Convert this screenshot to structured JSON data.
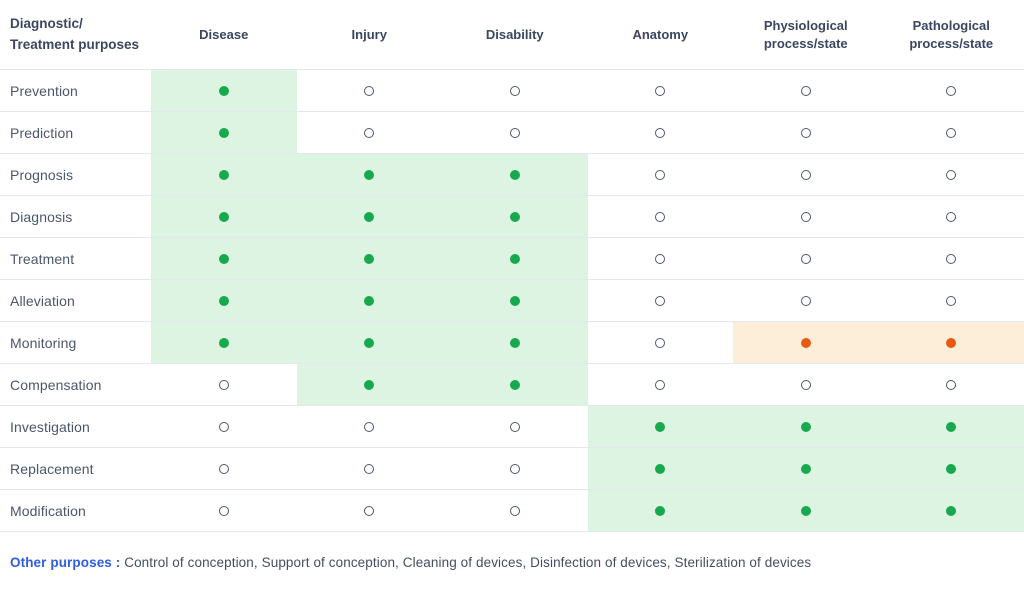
{
  "chart_data": {
    "type": "table",
    "corner_header": [
      "Diagnostic/",
      "Treatment purposes"
    ],
    "columns": [
      "Disease",
      "Injury",
      "Disability",
      "Anatomy",
      "Physiological process/state",
      "Pathological process/state"
    ],
    "rows": [
      {
        "label": "Prevention",
        "cells": [
          "filled_green",
          "empty",
          "empty",
          "empty",
          "empty",
          "empty"
        ]
      },
      {
        "label": "Prediction",
        "cells": [
          "filled_green",
          "empty",
          "empty",
          "empty",
          "empty",
          "empty"
        ]
      },
      {
        "label": "Prognosis",
        "cells": [
          "filled_green",
          "filled_green",
          "filled_green",
          "empty",
          "empty",
          "empty"
        ]
      },
      {
        "label": "Diagnosis",
        "cells": [
          "filled_green",
          "filled_green",
          "filled_green",
          "empty",
          "empty",
          "empty"
        ]
      },
      {
        "label": "Treatment",
        "cells": [
          "filled_green",
          "filled_green",
          "filled_green",
          "empty",
          "empty",
          "empty"
        ]
      },
      {
        "label": "Alleviation",
        "cells": [
          "filled_green",
          "filled_green",
          "filled_green",
          "empty",
          "empty",
          "empty"
        ]
      },
      {
        "label": "Monitoring",
        "cells": [
          "filled_green",
          "filled_green",
          "filled_green",
          "empty",
          "filled_orange",
          "filled_orange"
        ]
      },
      {
        "label": "Compensation",
        "cells": [
          "empty",
          "filled_green",
          "filled_green",
          "empty",
          "empty",
          "empty"
        ]
      },
      {
        "label": "Investigation",
        "cells": [
          "empty",
          "empty",
          "empty",
          "filled_green",
          "filled_green",
          "filled_green"
        ]
      },
      {
        "label": "Replacement",
        "cells": [
          "empty",
          "empty",
          "empty",
          "filled_green",
          "filled_green",
          "filled_green"
        ]
      },
      {
        "label": "Modification",
        "cells": [
          "empty",
          "empty",
          "empty",
          "filled_green",
          "filled_green",
          "filled_green"
        ]
      }
    ]
  },
  "footer": {
    "label": "Other purposes :",
    "text": " Control of conception, Support of conception, Cleaning of devices, Disinfection of devices, Sterilization of devices"
  },
  "colors": {
    "filled_green": "#17a94e",
    "green_bg": "#ddf4e3",
    "filled_orange": "#e95a0e",
    "orange_bg": "#fdeeda",
    "hollow_stroke": "#4e586c",
    "row_border": "#e4e8ee",
    "header_text": "#3b4660",
    "label_text": "#4c566b",
    "accent_blue": "#2e5ce5",
    "footer_text": "#454e60"
  }
}
